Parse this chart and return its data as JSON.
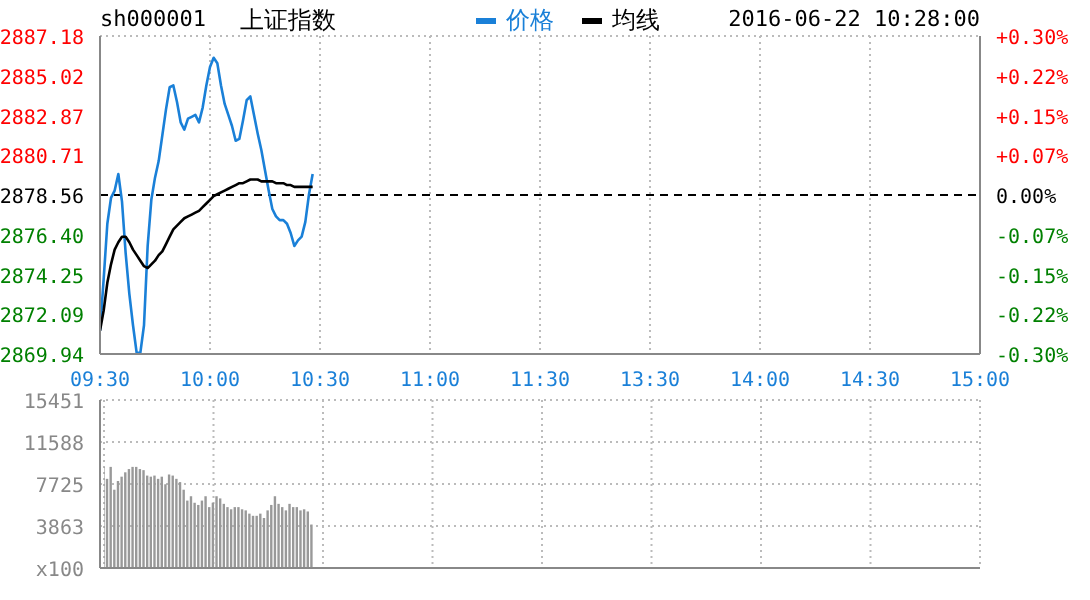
{
  "chart_data": [
    {
      "type": "line",
      "title": "上证指数",
      "subtitle": "sh000001",
      "annotations": [
        "2016-06-22 10:28:00"
      ],
      "legend": "top",
      "grid": true,
      "marker": "none",
      "categories": [
        "09:30",
        null,
        null,
        null,
        null,
        null,
        null,
        null,
        null,
        null,
        null,
        null,
        null,
        null,
        null,
        null,
        null,
        null,
        null,
        null,
        null,
        null,
        null,
        null,
        null,
        null,
        null,
        null,
        null,
        null,
        "10:00",
        null,
        null,
        null,
        null,
        null,
        null,
        null,
        null,
        null,
        null,
        null,
        null,
        null,
        null,
        null,
        null,
        null,
        null,
        null,
        null,
        null,
        null,
        null,
        null,
        null,
        null,
        null,
        null,
        null,
        "10:30",
        null,
        null,
        null,
        null,
        null,
        null,
        null,
        null,
        null,
        null,
        null,
        null,
        null,
        null,
        null,
        null,
        null,
        null,
        null,
        null,
        null,
        null,
        null,
        null,
        null,
        null,
        null,
        null,
        null,
        "11:00",
        null,
        null,
        null,
        null,
        null,
        null,
        null,
        null,
        null,
        null,
        null,
        null,
        null,
        null,
        null,
        null,
        null,
        null,
        null,
        null,
        null,
        null,
        null,
        null,
        null,
        null,
        null,
        null,
        null,
        "11:30",
        null,
        null,
        null,
        null,
        null,
        null,
        null,
        null,
        null,
        null,
        null,
        null,
        null,
        null,
        null,
        null,
        null,
        null,
        null,
        null,
        null,
        null,
        null,
        null,
        null,
        null,
        null,
        null,
        null,
        "13:30",
        null,
        null,
        null,
        null,
        null,
        null,
        null,
        null,
        null,
        null,
        null,
        null,
        null,
        null,
        null,
        null,
        null,
        null,
        null,
        null,
        null,
        null,
        null,
        null,
        null,
        null,
        null,
        null,
        null,
        "14:00",
        null,
        null,
        null,
        null,
        null,
        null,
        null,
        null,
        null,
        null,
        null,
        null,
        null,
        null,
        null,
        null,
        null,
        null,
        null,
        null,
        null,
        null,
        null,
        null,
        null,
        null,
        null,
        null,
        null,
        "14:30",
        null,
        null,
        null,
        null,
        null,
        null,
        null,
        null,
        null,
        null,
        null,
        null,
        null,
        null,
        null,
        null,
        null,
        null,
        null,
        null,
        null,
        null,
        null,
        null,
        null,
        null,
        null,
        null,
        null,
        "15:00"
      ],
      "ylim": [
        2869.94,
        2887.18
      ],
      "yticks": [
        2869.94,
        2872.09,
        2874.25,
        {
          "value": 2876.4,
          "label": "2876.40"
        },
        2878.56,
        2880.71,
        2882.87,
        2885.02,
        2887.18
      ],
      "y2lim": [
        -0.3,
        0.3
      ],
      "y2ticks": [
        {
          "value": -0.3,
          "label": "-0.30%"
        },
        {
          "value": -0.225,
          "label": "-0.22%"
        },
        {
          "value": -0.15,
          "label": "-0.15%"
        },
        {
          "value": -0.075,
          "label": "-0.07%"
        },
        {
          "value": 0,
          "label": "0.00%"
        },
        {
          "value": 0.075,
          "label": "+0.07%"
        },
        {
          "value": 0.15,
          "label": "+0.15%"
        },
        {
          "value": 0.225,
          "label": "+0.22%"
        },
        {
          "value": 0.3,
          "label": "+0.30%"
        }
      ],
      "ref_lines": [
        {
          "axis": "y",
          "value": 2878.56,
          "color": "#000000",
          "line_style": "dashed"
        }
      ],
      "series": [
        {
          "name": "价格",
          "color": "#1a80d8",
          "values": [
            2871.2,
            2874.0,
            2877.0,
            2878.4,
            2878.8,
            2879.7,
            2878.2,
            2875.4,
            2873.2,
            2871.5,
            2870.0,
            2870.0,
            2871.5,
            2875.8,
            2878.3,
            2879.5,
            2880.4,
            2881.8,
            2883.2,
            2884.4,
            2884.5,
            2883.6,
            2882.5,
            2882.1,
            2882.7,
            2882.8,
            2882.9,
            2882.5,
            2883.3,
            2884.5,
            2885.5,
            2886.0,
            2885.7,
            2884.5,
            2883.5,
            2882.9,
            2882.3,
            2881.5,
            2881.6,
            2882.6,
            2883.7,
            2883.9,
            2882.9,
            2881.9,
            2881.0,
            2879.9,
            2878.8,
            2877.8,
            2877.4,
            2877.2,
            2877.2,
            2877.0,
            2876.5,
            2875.8,
            2876.1,
            2876.3,
            2877.1,
            2878.6,
            2879.7,
            null,
            null,
            null,
            null,
            null,
            null,
            null,
            null,
            null,
            null,
            null,
            null,
            null,
            null,
            null,
            null,
            null,
            null,
            null,
            null,
            null,
            null,
            null,
            null,
            null,
            null,
            null,
            null,
            null,
            null,
            null,
            null,
            null,
            null,
            null,
            null,
            null,
            null,
            null,
            null,
            null,
            null,
            null,
            null,
            null,
            null,
            null,
            null,
            null,
            null,
            null,
            null,
            null,
            null,
            null,
            null,
            null,
            null,
            null,
            null,
            null,
            null,
            null,
            null,
            null,
            null,
            null,
            null,
            null,
            null,
            null,
            null,
            null,
            null,
            null,
            null,
            null,
            null,
            null,
            null,
            null,
            null,
            null,
            null,
            null,
            null,
            null,
            null,
            null,
            null,
            null,
            null,
            null,
            null,
            null,
            null,
            null,
            null,
            null,
            null,
            null,
            null,
            null,
            null,
            null,
            null,
            null,
            null,
            null,
            null,
            null,
            null,
            null,
            null,
            null,
            null,
            null,
            null,
            null,
            null,
            null,
            null,
            null,
            null,
            null,
            null,
            null,
            null,
            null,
            null,
            null,
            null,
            null,
            null,
            null,
            null,
            null,
            null,
            null,
            null,
            null,
            null,
            null,
            null,
            null,
            null,
            null,
            null,
            null,
            null,
            null,
            null,
            null,
            null,
            null,
            null,
            null,
            null,
            null,
            null,
            null,
            null,
            null,
            null,
            null,
            null,
            null,
            null,
            null,
            null,
            null,
            null,
            null,
            null,
            null,
            null,
            null,
            null,
            null,
            null,
            null,
            null
          ]
        },
        {
          "name": "均线",
          "color": "#000000",
          "values": [
            2871.2,
            2872.3,
            2873.8,
            2874.8,
            2875.6,
            2876.0,
            2876.3,
            2876.3,
            2876.0,
            2875.6,
            2875.3,
            2875.0,
            2874.7,
            2874.6,
            2874.8,
            2875.0,
            2875.3,
            2875.5,
            2875.9,
            2876.3,
            2876.7,
            2876.9,
            2877.1,
            2877.3,
            2877.4,
            2877.5,
            2877.6,
            2877.7,
            2877.9,
            2878.1,
            2878.3,
            2878.5,
            2878.6,
            2878.7,
            2878.8,
            2878.9,
            2879.0,
            2879.1,
            2879.2,
            2879.2,
            2879.3,
            2879.4,
            2879.4,
            2879.4,
            2879.3,
            2879.3,
            2879.3,
            2879.3,
            2879.2,
            2879.2,
            2879.2,
            2879.1,
            2879.1,
            2879.0,
            2879.0,
            2879.0,
            2879.0,
            2879.0,
            2879.0,
            null,
            null,
            null,
            null,
            null,
            null,
            null,
            null,
            null,
            null,
            null,
            null,
            null,
            null,
            null,
            null,
            null,
            null,
            null,
            null,
            null,
            null,
            null,
            null,
            null,
            null,
            null,
            null,
            null,
            null,
            null,
            null,
            null,
            null,
            null,
            null,
            null,
            null,
            null,
            null,
            null,
            null,
            null,
            null,
            null,
            null,
            null,
            null,
            null,
            null,
            null,
            null,
            null,
            null,
            null,
            null,
            null,
            null,
            null,
            null,
            null,
            null,
            null,
            null,
            null,
            null,
            null,
            null,
            null,
            null,
            null,
            null,
            null,
            null,
            null,
            null,
            null,
            null,
            null,
            null,
            null,
            null,
            null,
            null,
            null,
            null,
            null,
            null,
            null,
            null,
            null,
            null,
            null,
            null,
            null,
            null,
            null,
            null,
            null,
            null,
            null,
            null,
            null,
            null,
            null,
            null,
            null,
            null,
            null,
            null,
            null,
            null,
            null,
            null,
            null,
            null,
            null,
            null,
            null,
            null,
            null,
            null,
            null,
            null,
            null,
            null,
            null,
            null,
            null,
            null,
            null,
            null,
            null,
            null,
            null,
            null,
            null,
            null,
            null,
            null,
            null,
            null,
            null,
            null,
            null,
            null,
            null,
            null,
            null,
            null,
            null,
            null,
            null,
            null,
            null,
            null,
            null,
            null,
            null,
            null,
            null,
            null,
            null,
            null,
            null,
            null,
            null,
            null,
            null,
            null,
            null,
            null,
            null,
            null,
            null,
            null,
            null,
            null,
            null,
            null,
            null,
            null
          ]
        }
      ]
    },
    {
      "type": "bar",
      "tick_labels": "y",
      "grid": true,
      "color": "#999999",
      "categories": [
        null,
        null,
        null,
        null,
        null,
        null,
        null,
        null,
        null,
        null,
        null,
        null,
        null,
        null,
        null,
        null,
        null,
        null,
        null,
        null,
        null,
        null,
        null,
        null,
        null,
        null,
        null,
        null,
        null,
        null,
        null,
        null,
        null,
        null,
        null,
        null,
        null,
        null,
        null,
        null,
        null,
        null,
        null,
        null,
        null,
        null,
        null,
        null,
        null,
        null,
        null,
        null,
        null,
        null,
        null,
        null,
        null,
        null,
        null,
        null,
        null,
        null,
        null,
        null,
        null,
        null,
        null,
        null,
        null,
        null,
        null,
        null,
        null,
        null,
        null,
        null,
        null,
        null,
        null,
        null,
        null,
        null,
        null,
        null,
        null,
        null,
        null,
        null,
        null,
        null,
        null,
        null,
        null,
        null,
        null,
        null,
        null,
        null,
        null,
        null,
        null,
        null,
        null,
        null,
        null,
        null,
        null,
        null,
        null,
        null,
        null,
        null,
        null,
        null,
        null,
        null,
        null,
        null,
        null,
        null,
        null,
        null,
        null,
        null,
        null,
        null,
        null,
        null,
        null,
        null,
        null,
        null,
        null,
        null,
        null,
        null,
        null,
        null,
        null,
        null,
        null,
        null,
        null,
        null,
        null,
        null,
        null,
        null,
        null,
        null,
        null,
        null,
        null,
        null,
        null,
        null,
        null,
        null,
        null,
        null,
        null,
        null,
        null,
        null,
        null,
        null,
        null,
        null,
        null,
        null,
        null,
        null,
        null,
        null,
        null,
        null,
        null,
        null,
        null,
        null,
        null,
        null,
        null,
        null,
        null,
        null,
        null,
        null,
        null,
        null,
        null,
        null,
        null,
        null,
        null,
        null,
        null,
        null,
        null,
        null,
        null,
        null,
        null,
        null,
        null,
        null,
        null,
        null,
        null,
        null,
        null,
        null,
        null,
        null,
        null,
        null,
        null,
        null,
        null,
        null,
        null,
        null,
        null,
        null,
        null,
        null,
        null,
        null,
        null,
        null,
        null,
        null,
        null,
        null,
        null,
        null,
        null,
        null,
        null,
        null,
        null
      ],
      "ylim": [
        0,
        15451
      ],
      "yticks": [
        {
          "value": 0,
          "label": "x100"
        },
        3863,
        7725,
        11588,
        15451
      ],
      "values": [
        9300,
        8200,
        9300,
        7200,
        8000,
        8400,
        8800,
        9100,
        9300,
        9300,
        9100,
        9000,
        8500,
        8400,
        8500,
        8200,
        8400,
        7700,
        8600,
        8500,
        8200,
        7900,
        7200,
        6200,
        6600,
        6000,
        5800,
        6200,
        6600,
        5600,
        6000,
        6600,
        6400,
        5900,
        5600,
        5400,
        5600,
        5600,
        5400,
        5300,
        5000,
        4800,
        4800,
        5000,
        4600,
        5300,
        5800,
        6600,
        5900,
        5600,
        5300,
        5900,
        5600,
        5600,
        5300,
        5400,
        5200,
        4000,
        null,
        null,
        null,
        null,
        null,
        null,
        null,
        null,
        null,
        null,
        null,
        null,
        null,
        null,
        null,
        null,
        null,
        null,
        null,
        null,
        null,
        null,
        null,
        null,
        null,
        null,
        null,
        null,
        null,
        null,
        null,
        null,
        null,
        null,
        null,
        null,
        null,
        null,
        null,
        null,
        null,
        null,
        null,
        null,
        null,
        null,
        null,
        null,
        null,
        null,
        null,
        null,
        null,
        null,
        null,
        null,
        null,
        null,
        null,
        null,
        null,
        null,
        null,
        null,
        null,
        null,
        null,
        null,
        null,
        null,
        null,
        null,
        null,
        null,
        null,
        null,
        null,
        null,
        null,
        null,
        null,
        null,
        null,
        null,
        null,
        null,
        null,
        null,
        null,
        null,
        null,
        null,
        null,
        null,
        null,
        null,
        null,
        null,
        null,
        null,
        null,
        null,
        null,
        null,
        null,
        null,
        null,
        null,
        null,
        null,
        null,
        null,
        null,
        null,
        null,
        null,
        null,
        null,
        null,
        null,
        null,
        null,
        null,
        null,
        null,
        null,
        null,
        null,
        null,
        null,
        null,
        null,
        null,
        null,
        null,
        null,
        null,
        null,
        null,
        null,
        null,
        null,
        null,
        null,
        null,
        null,
        null,
        null,
        null,
        null,
        null,
        null,
        null,
        null,
        null,
        null,
        null,
        null,
        null,
        null,
        null,
        null,
        null,
        null,
        null,
        null,
        null,
        null,
        null,
        null,
        null,
        null,
        null,
        null,
        null,
        null,
        null,
        null,
        null,
        null,
        null,
        null,
        null
      ]
    }
  ]
}
